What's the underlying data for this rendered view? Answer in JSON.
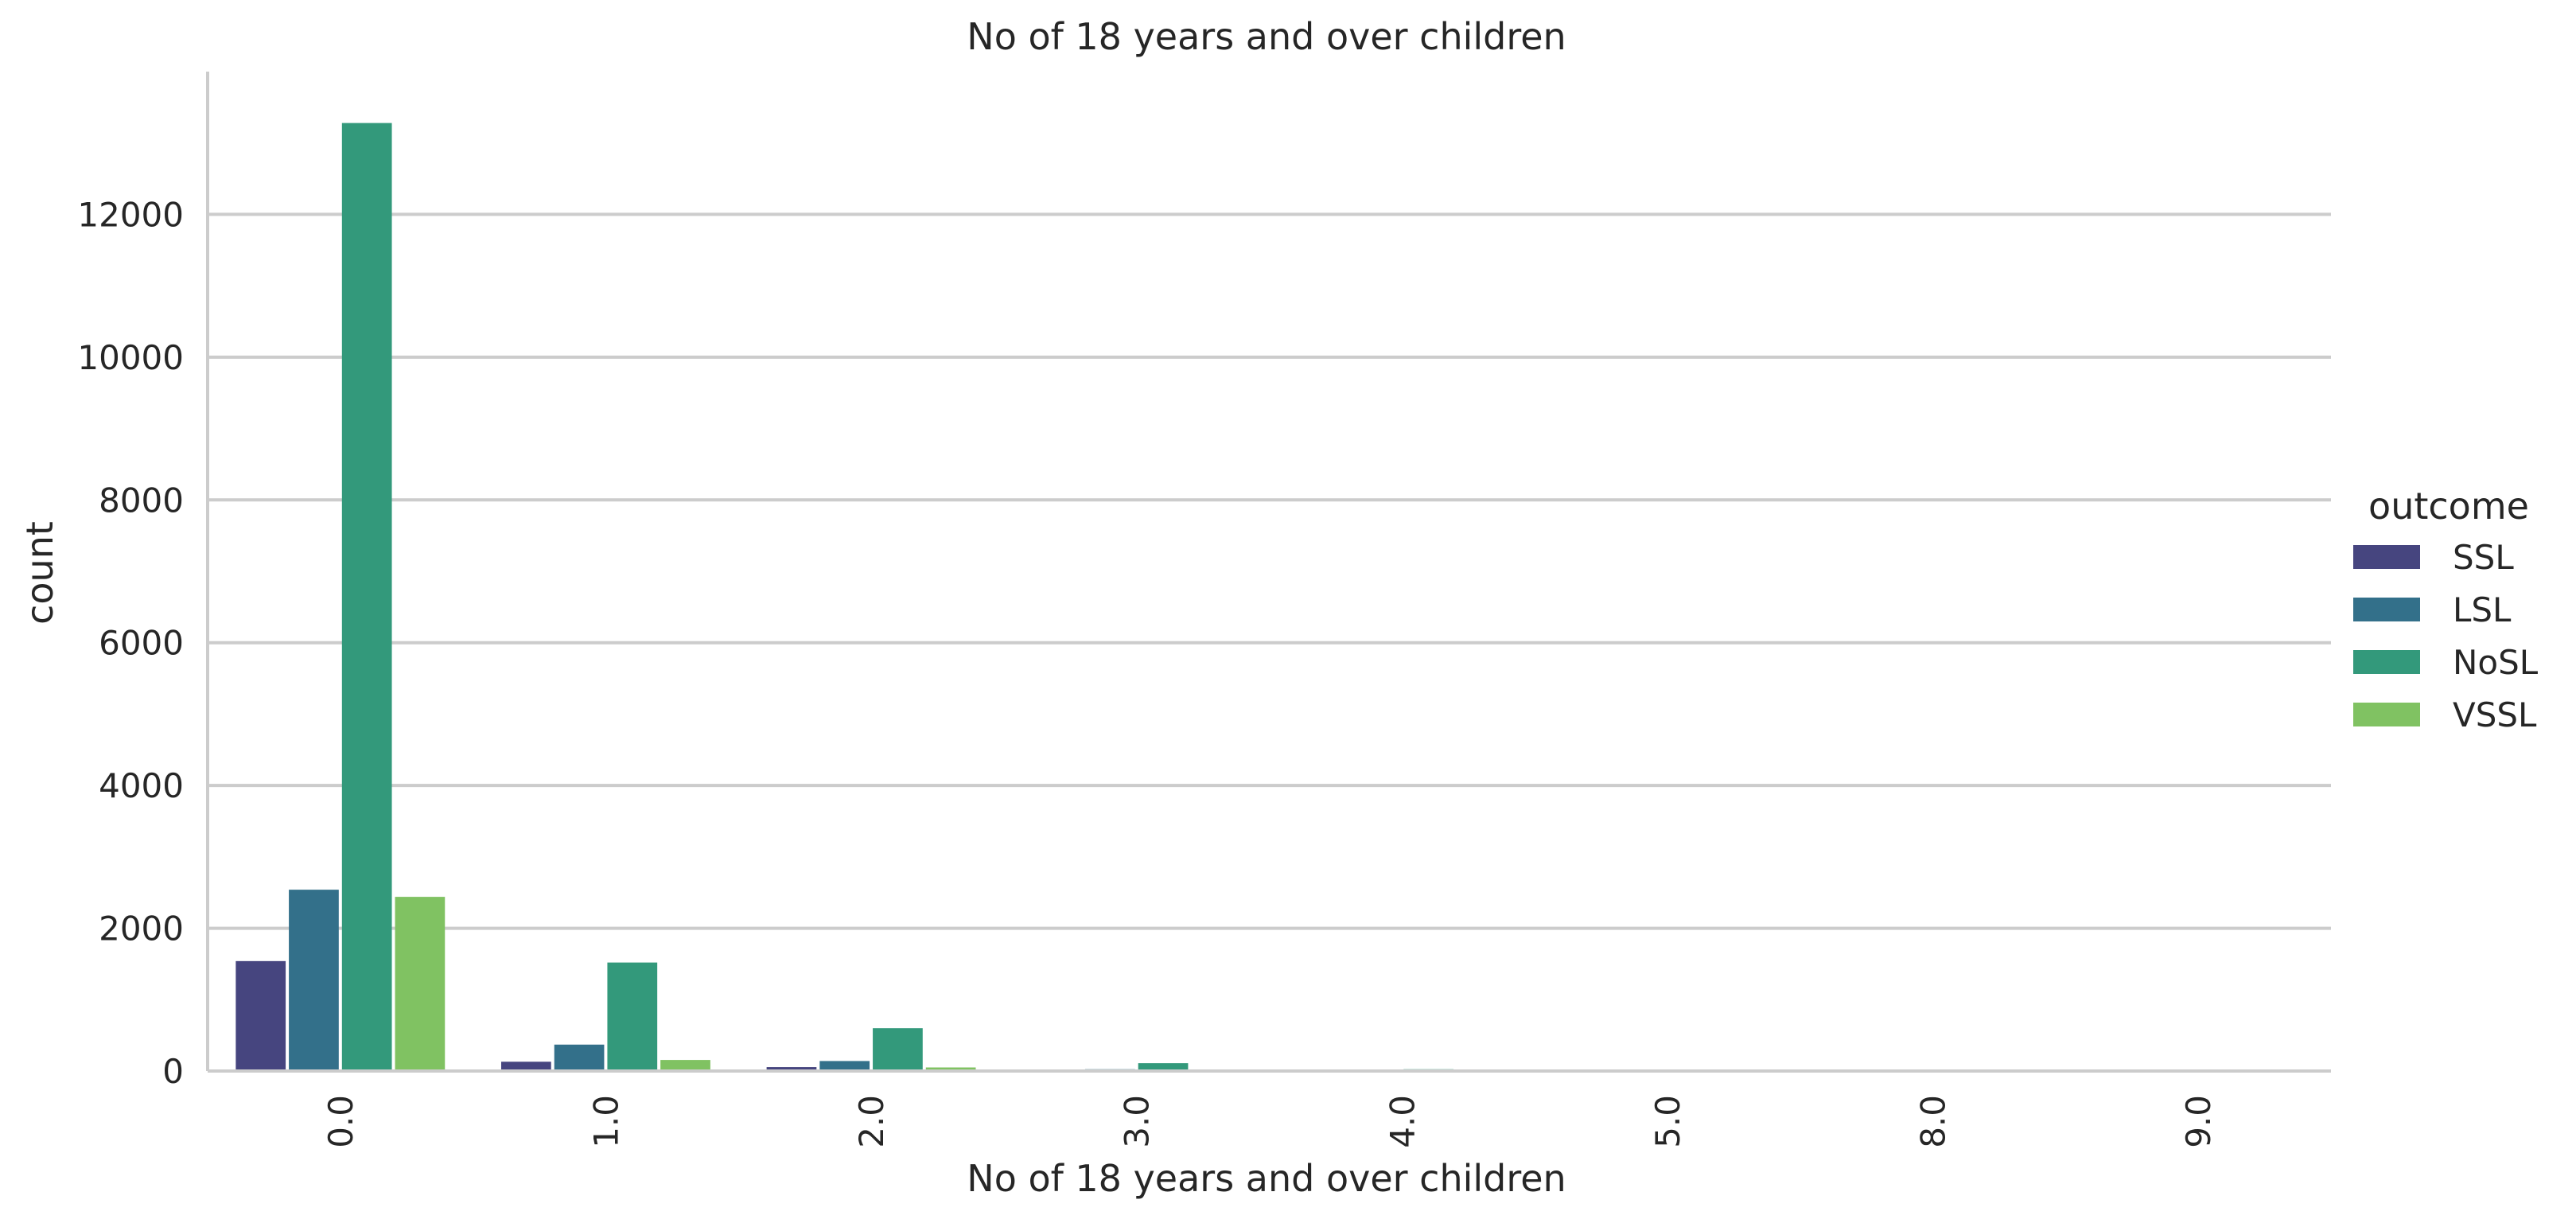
{
  "chart_data": {
    "type": "bar",
    "title": "No of 18 years and over children",
    "xlabel": "No of 18 years and over children",
    "ylabel": "count",
    "categories": [
      "0.0",
      "1.0",
      "2.0",
      "3.0",
      "4.0",
      "5.0",
      "8.0",
      "9.0"
    ],
    "series": [
      {
        "name": "SSL",
        "color": "#46457f",
        "values": [
          1540,
          130,
          55,
          15,
          5,
          2,
          1,
          1
        ]
      },
      {
        "name": "LSL",
        "color": "#33708a",
        "values": [
          2540,
          370,
          140,
          25,
          8,
          3,
          1,
          1
        ]
      },
      {
        "name": "NoSL",
        "color": "#33997b",
        "values": [
          13280,
          1520,
          600,
          110,
          25,
          10,
          3,
          3
        ]
      },
      {
        "name": "VSSL",
        "color": "#80c262",
        "values": [
          2440,
          155,
          50,
          12,
          3,
          2,
          1,
          1
        ]
      }
    ],
    "yticks": [
      0,
      2000,
      4000,
      6000,
      8000,
      10000,
      12000
    ],
    "ylim": [
      0,
      14000
    ],
    "legend": {
      "title": "outcome",
      "placement": "right"
    },
    "grid": "horizontal"
  }
}
